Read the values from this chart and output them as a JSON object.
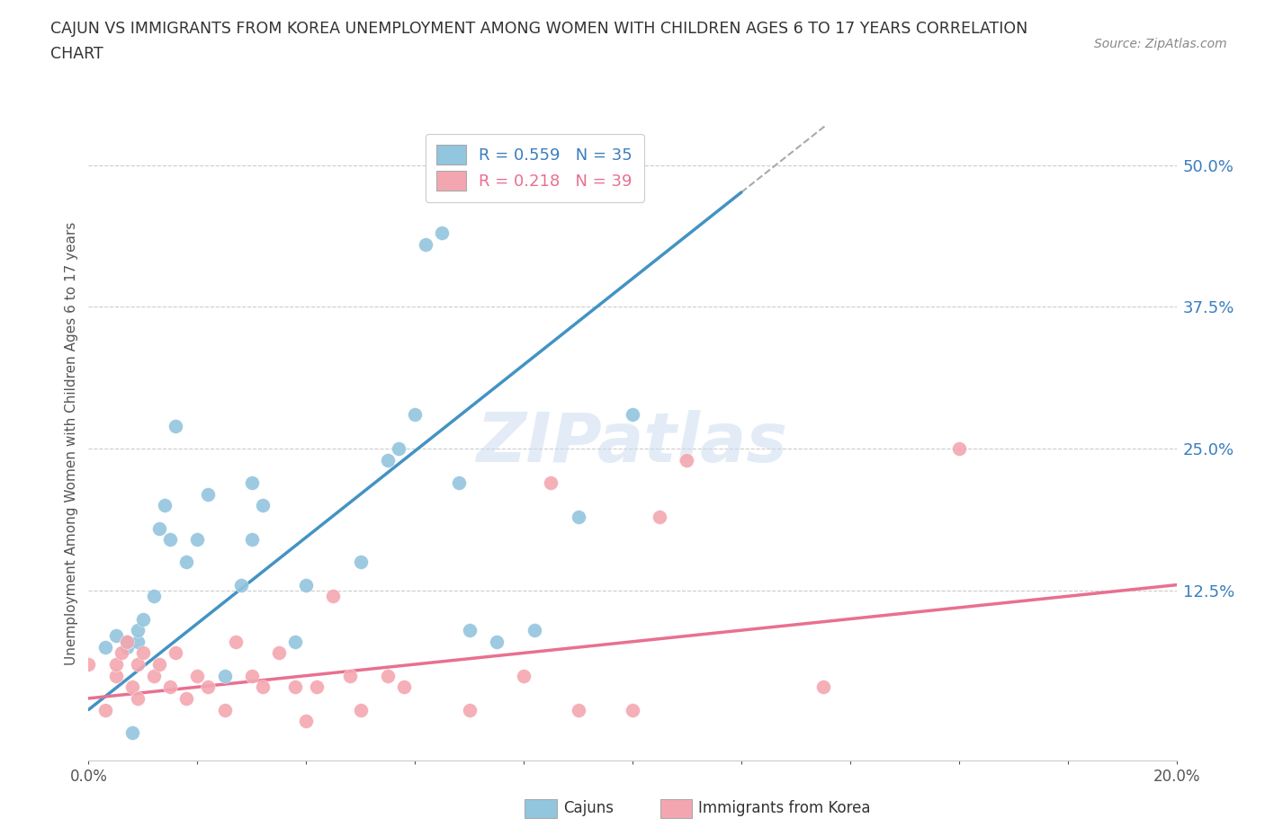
{
  "title_line1": "CAJUN VS IMMIGRANTS FROM KOREA UNEMPLOYMENT AMONG WOMEN WITH CHILDREN AGES 6 TO 17 YEARS CORRELATION",
  "title_line2": "CHART",
  "source_text": "Source: ZipAtlas.com",
  "ylabel": "Unemployment Among Women with Children Ages 6 to 17 years",
  "xlim": [
    0.0,
    0.2
  ],
  "ylim": [
    -0.025,
    0.535
  ],
  "yticks": [
    0.125,
    0.25,
    0.375,
    0.5
  ],
  "ytick_labels": [
    "12.5%",
    "25.0%",
    "37.5%",
    "50.0%"
  ],
  "xticks": [
    0.0,
    0.02,
    0.04,
    0.06,
    0.08,
    0.1,
    0.12,
    0.14,
    0.16,
    0.18,
    0.2
  ],
  "xtick_labels_show": [
    "0.0%",
    "",
    "",
    "",
    "",
    "",
    "",
    "",
    "",
    "",
    "20.0%"
  ],
  "cajun_color": "#92c5de",
  "korea_color": "#f4a6b0",
  "cajun_line_color": "#4393c3",
  "korea_line_color": "#e87090",
  "legend_cajun_label": "R = 0.559   N = 35",
  "legend_korea_label": "R = 0.218   N = 39",
  "watermark": "ZIPatlas",
  "cajun_x": [
    0.003,
    0.005,
    0.007,
    0.007,
    0.008,
    0.009,
    0.009,
    0.01,
    0.012,
    0.013,
    0.014,
    0.015,
    0.016,
    0.018,
    0.02,
    0.022,
    0.025,
    0.028,
    0.03,
    0.03,
    0.032,
    0.038,
    0.04,
    0.05,
    0.055,
    0.057,
    0.06,
    0.062,
    0.065,
    0.068,
    0.07,
    0.075,
    0.082,
    0.09,
    0.1
  ],
  "cajun_y": [
    0.075,
    0.085,
    0.075,
    0.08,
    0.0,
    0.08,
    0.09,
    0.1,
    0.12,
    0.18,
    0.2,
    0.17,
    0.27,
    0.15,
    0.17,
    0.21,
    0.05,
    0.13,
    0.17,
    0.22,
    0.2,
    0.08,
    0.13,
    0.15,
    0.24,
    0.25,
    0.28,
    0.43,
    0.44,
    0.22,
    0.09,
    0.08,
    0.09,
    0.19,
    0.28
  ],
  "korea_x": [
    0.0,
    0.003,
    0.005,
    0.005,
    0.006,
    0.007,
    0.008,
    0.009,
    0.009,
    0.01,
    0.012,
    0.013,
    0.015,
    0.016,
    0.018,
    0.02,
    0.022,
    0.025,
    0.027,
    0.03,
    0.032,
    0.035,
    0.038,
    0.04,
    0.042,
    0.045,
    0.048,
    0.05,
    0.055,
    0.058,
    0.07,
    0.08,
    0.085,
    0.09,
    0.1,
    0.105,
    0.11,
    0.135,
    0.16
  ],
  "korea_y": [
    0.06,
    0.02,
    0.05,
    0.06,
    0.07,
    0.08,
    0.04,
    0.03,
    0.06,
    0.07,
    0.05,
    0.06,
    0.04,
    0.07,
    0.03,
    0.05,
    0.04,
    0.02,
    0.08,
    0.05,
    0.04,
    0.07,
    0.04,
    0.01,
    0.04,
    0.12,
    0.05,
    0.02,
    0.05,
    0.04,
    0.02,
    0.05,
    0.22,
    0.02,
    0.02,
    0.19,
    0.24,
    0.04,
    0.25
  ],
  "background_color": "#ffffff",
  "grid_color": "#cccccc"
}
